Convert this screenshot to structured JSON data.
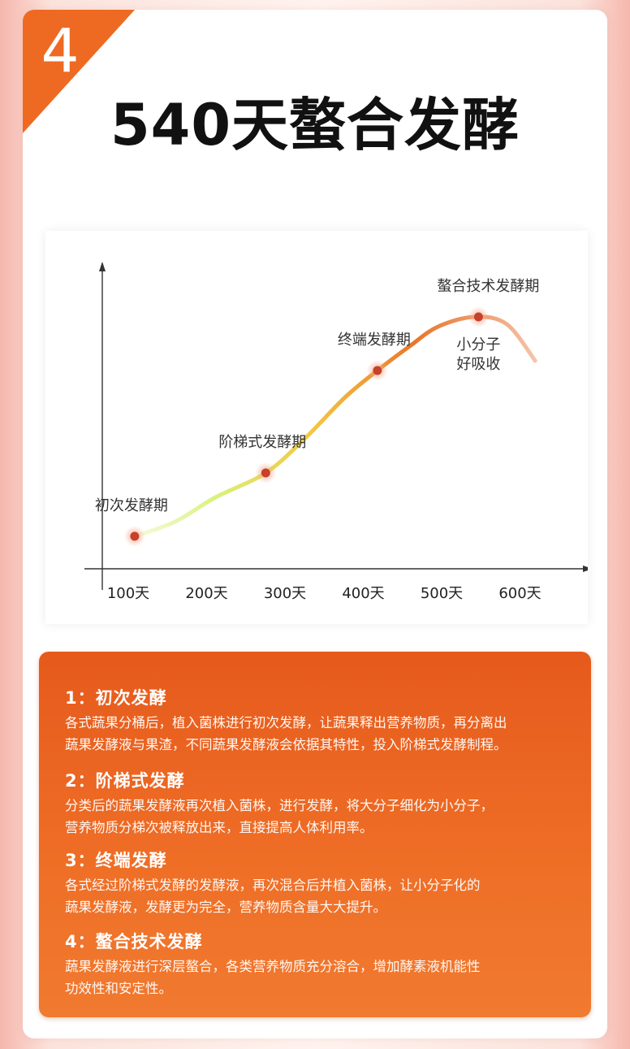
{
  "badge_number": "4",
  "page_title": "540天螯合发酵",
  "colors": {
    "accent": "#ee6a22",
    "panel": "#e95f20",
    "curve_start": "#d9f27a",
    "curve_mid": "#f4c542",
    "curve_end": "#e8772b"
  },
  "chart_data": {
    "type": "line",
    "title": "",
    "xlabel": "",
    "ylabel": "",
    "categories": [
      "100天",
      "200天",
      "300天",
      "400天",
      "500天",
      "600天"
    ],
    "xlim": [
      60,
      650
    ],
    "ylim": [
      0,
      100
    ],
    "axis_arrows": true,
    "grid": false,
    "curve": [
      [
        100,
        8
      ],
      [
        150,
        14
      ],
      [
        200,
        24
      ],
      [
        262,
        34
      ],
      [
        310,
        48
      ],
      [
        360,
        65
      ],
      [
        400,
        76
      ],
      [
        440,
        86
      ],
      [
        475,
        94
      ],
      [
        520,
        98
      ],
      [
        560,
        95
      ],
      [
        595,
        80
      ]
    ],
    "points": [
      {
        "x": 100,
        "y": 8,
        "label": "初次发酵期"
      },
      {
        "x": 262,
        "y": 34,
        "label": "阶梯式发酵期"
      },
      {
        "x": 400,
        "y": 76,
        "label": "终端发酵期"
      },
      {
        "x": 525,
        "y": 98,
        "label": "螯合技术发酵期",
        "note": [
          "小分子",
          "好吸收"
        ]
      }
    ]
  },
  "steps": [
    {
      "title": "1：初次发酵",
      "desc": [
        "各式蔬果分桶后，植入菌株进行初次发酵，让蔬果释出营养物质，再分离出",
        "蔬果发酵液与果渣，不同蔬果发酵液会依据其特性，投入阶梯式发酵制程。"
      ]
    },
    {
      "title": "2：阶梯式发酵",
      "desc": [
        "分类后的蔬果发酵液再次植入菌株，进行发酵，将大分子细化为小分子，",
        "营养物质分梯次被释放出来，直接提高人体利用率。"
      ]
    },
    {
      "title": "3：终端发酵",
      "desc": [
        "各式经过阶梯式发酵的发酵液，再次混合后并植入菌株，让小分子化的",
        "蔬果发酵液，发酵更为完全，营养物质含量大大提升。"
      ]
    },
    {
      "title": "4：螯合技术发酵",
      "desc": [
        "蔬果发酵液进行深层螯合，各类营养物质充分溶合，增加酵素液机能性",
        "功效性和安定性。"
      ]
    }
  ]
}
